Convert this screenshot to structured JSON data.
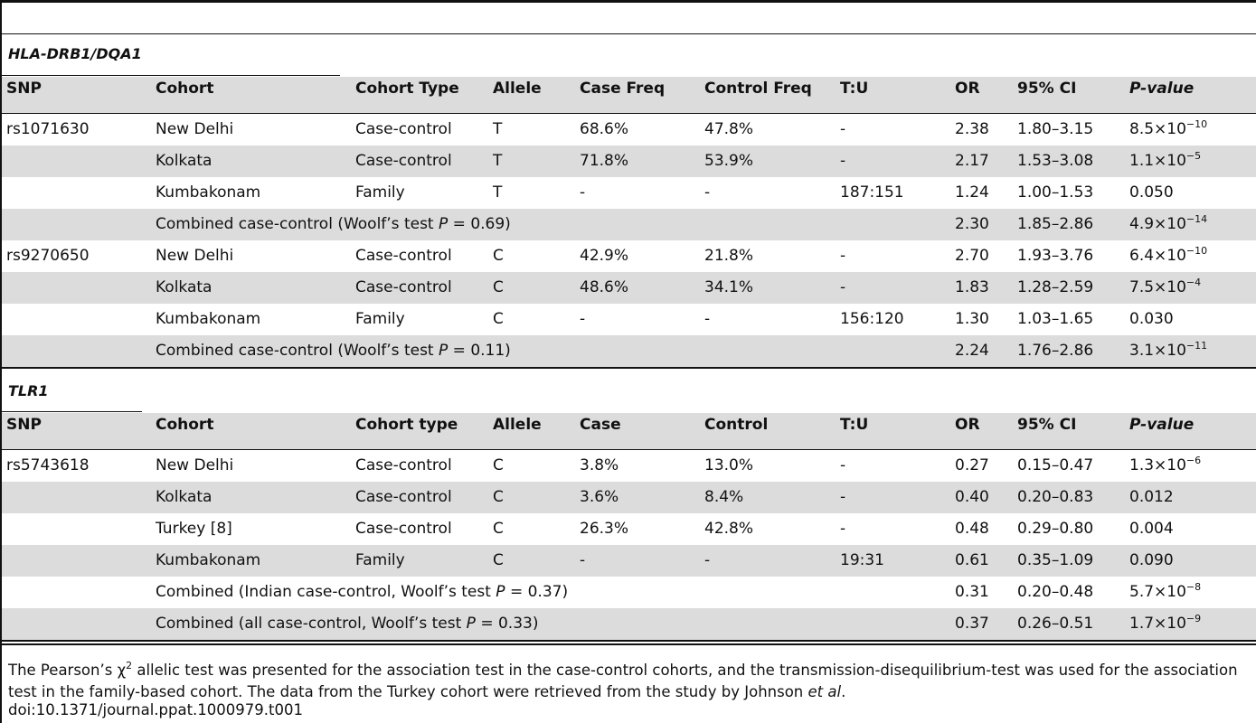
{
  "section1": {
    "title": "HLA-DRB1/DQA1",
    "headers": [
      "SNP",
      "Cohort",
      "Cohort Type",
      "Allele",
      "Case Freq",
      "Control Freq",
      "T:U",
      "OR",
      "95% CI",
      "P-value"
    ],
    "rows": [
      {
        "snp": "rs1071630",
        "cohort": "New Delhi",
        "type": "Case-control",
        "allele": "T",
        "case": "68.6%",
        "control": "47.8%",
        "tu": "-",
        "or": "2.38",
        "ci": "1.80–3.15",
        "p_base": "8.5×10",
        "p_exp": "−10"
      },
      {
        "snp": "",
        "cohort": "Kolkata",
        "type": "Case-control",
        "allele": "T",
        "case": "71.8%",
        "control": "53.9%",
        "tu": "-",
        "or": "2.17",
        "ci": "1.53–3.08",
        "p_base": "1.1×10",
        "p_exp": "−5"
      },
      {
        "snp": "",
        "cohort": "Kumbakonam",
        "type": "Family",
        "allele": "T",
        "case": "-",
        "control": "-",
        "tu": "187:151",
        "or": "1.24",
        "ci": "1.00–1.53",
        "p_base": "0.050",
        "p_exp": ""
      },
      {
        "snp": "",
        "combined_pre": "Combined case-control (Woolf’s test ",
        "combined_p": "P",
        "combined_post": " = 0.69)",
        "or": "2.30",
        "ci": "1.85–2.86",
        "p_base": "4.9×10",
        "p_exp": "−14"
      },
      {
        "snp": "rs9270650",
        "cohort": "New Delhi",
        "type": "Case-control",
        "allele": "C",
        "case": "42.9%",
        "control": "21.8%",
        "tu": "-",
        "or": "2.70",
        "ci": "1.93–3.76",
        "p_base": "6.4×10",
        "p_exp": "−10"
      },
      {
        "snp": "",
        "cohort": "Kolkata",
        "type": "Case-control",
        "allele": "C",
        "case": "48.6%",
        "control": "34.1%",
        "tu": "-",
        "or": "1.83",
        "ci": "1.28–2.59",
        "p_base": "7.5×10",
        "p_exp": "−4"
      },
      {
        "snp": "",
        "cohort": "Kumbakonam",
        "type": "Family",
        "allele": "C",
        "case": "-",
        "control": "-",
        "tu": "156:120",
        "or": "1.30",
        "ci": "1.03–1.65",
        "p_base": "0.030",
        "p_exp": ""
      },
      {
        "snp": "",
        "combined_pre": "Combined case-control (Woolf’s test ",
        "combined_p": "P",
        "combined_post": " = 0.11)",
        "or": "2.24",
        "ci": "1.76–2.86",
        "p_base": "3.1×10",
        "p_exp": "−11"
      }
    ]
  },
  "section2": {
    "title": "TLR1",
    "headers": [
      "SNP",
      "Cohort",
      "Cohort type",
      "Allele",
      "Case",
      "Control",
      "T:U",
      "OR",
      "95% CI",
      "P-value"
    ],
    "rows": [
      {
        "snp": "rs5743618",
        "cohort": "New Delhi",
        "type": "Case-control",
        "allele": "C",
        "case": "3.8%",
        "control": "13.0%",
        "tu": "-",
        "or": "0.27",
        "ci": "0.15–0.47",
        "p_base": "1.3×10",
        "p_exp": "−6"
      },
      {
        "snp": "",
        "cohort": "Kolkata",
        "type": "Case-control",
        "allele": "C",
        "case": "3.6%",
        "control": "8.4%",
        "tu": "-",
        "or": "0.40",
        "ci": "0.20–0.83",
        "p_base": "0.012",
        "p_exp": ""
      },
      {
        "snp": "",
        "cohort": "Turkey [8]",
        "type": "Case-control",
        "allele": "C",
        "case": "26.3%",
        "control": "42.8%",
        "tu": "-",
        "or": "0.48",
        "ci": "0.29–0.80",
        "p_base": "0.004",
        "p_exp": ""
      },
      {
        "snp": "",
        "cohort": "Kumbakonam",
        "type": "Family",
        "allele": "C",
        "case": "-",
        "control": "-",
        "tu": "19:31",
        "or": "0.61",
        "ci": "0.35–1.09",
        "p_base": "0.090",
        "p_exp": ""
      },
      {
        "snp": "",
        "combined_pre": "Combined (Indian case-control, Woolf’s test ",
        "combined_p": "P",
        "combined_post": " = 0.37)",
        "or": "0.31",
        "ci": "0.20–0.48",
        "p_base": "5.7×10",
        "p_exp": "−8"
      },
      {
        "snp": "",
        "combined_pre": "Combined (all case-control, Woolf’s test ",
        "combined_p": "P",
        "combined_post": " = 0.33)",
        "or": "0.37",
        "ci": "0.26–0.51",
        "p_base": "1.7×10",
        "p_exp": "−9"
      }
    ]
  },
  "footnote": {
    "line1_pre": "The Pearson’s χ",
    "line1_sup": "2",
    "line1_post": " allelic test was presented for the association test in the case-control cohorts, and the transmission-disequilibrium-test was used for the association test in the family-based cohort. The data from the Turkey cohort were retrieved from the study by Johnson ",
    "etal": "et al",
    "end": ".",
    "doi": "doi:10.1371/journal.ppat.1000979.t001"
  }
}
